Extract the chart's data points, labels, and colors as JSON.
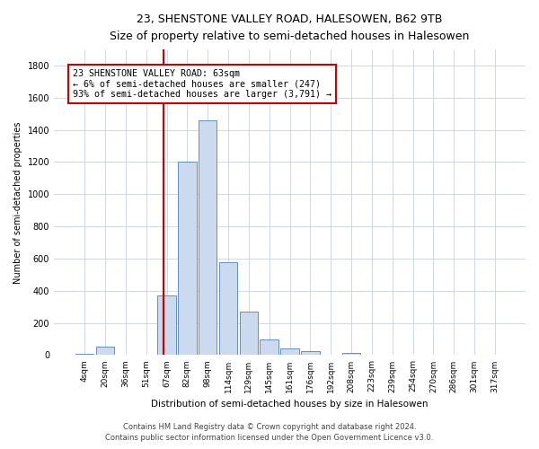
{
  "title": "23, SHENSTONE VALLEY ROAD, HALESOWEN, B62 9TB",
  "subtitle": "Size of property relative to semi-detached houses in Halesowen",
  "xlabel": "Distribution of semi-detached houses by size in Halesowen",
  "ylabel": "Number of semi-detached properties",
  "bins": [
    "4sqm",
    "20sqm",
    "36sqm",
    "51sqm",
    "67sqm",
    "82sqm",
    "98sqm",
    "114sqm",
    "129sqm",
    "145sqm",
    "161sqm",
    "176sqm",
    "192sqm",
    "208sqm",
    "223sqm",
    "239sqm",
    "254sqm",
    "270sqm",
    "286sqm",
    "301sqm",
    "317sqm"
  ],
  "values": [
    10,
    50,
    3,
    3,
    370,
    1200,
    1460,
    580,
    270,
    100,
    40,
    25,
    5,
    15,
    5,
    3,
    0,
    0,
    0,
    0,
    0
  ],
  "ylim": [
    0,
    1900
  ],
  "yticks": [
    0,
    200,
    400,
    600,
    800,
    1000,
    1200,
    1400,
    1600,
    1800
  ],
  "bar_color": "#ccdaf0",
  "bar_edge_color": "#6090c8",
  "vline_x": 3.85,
  "vline_color": "#cc0000",
  "annotation_text": "23 SHENSTONE VALLEY ROAD: 63sqm\n← 6% of semi-detached houses are smaller (247)\n93% of semi-detached houses are larger (3,791) →",
  "annotation_box_color": "#ffffff",
  "annotation_box_edge": "#cc0000",
  "footer1": "Contains HM Land Registry data © Crown copyright and database right 2024.",
  "footer2": "Contains public sector information licensed under the Open Government Licence v3.0.",
  "background_color": "#ffffff",
  "grid_color": "#c8d0e0"
}
